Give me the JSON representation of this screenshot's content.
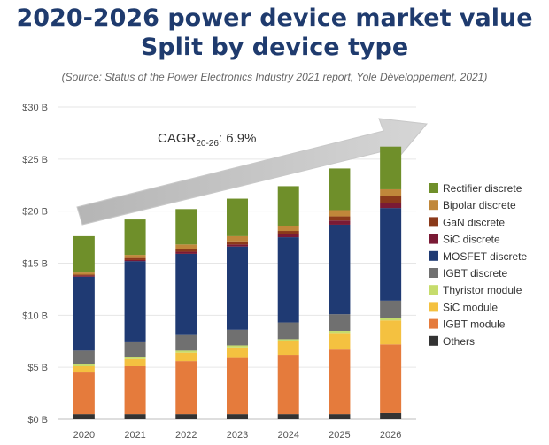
{
  "header": {
    "title_line1": "2020-2026 power device market value",
    "title_line2": "Split by device type",
    "source": "(Source: Status of the Power Electronics Industry 2021 report, Yole Développement, 2021)"
  },
  "annotation": {
    "cagr_prefix": "CAGR",
    "cagr_sub": "20-26",
    "cagr_value": ": 6.9%"
  },
  "chart_data": {
    "type": "bar",
    "stacked": true,
    "title": "2020-2026 power device market value Split by device type",
    "categories": [
      "2020",
      "2021",
      "2022",
      "2023",
      "2024",
      "2025",
      "2026"
    ],
    "ylim": [
      0,
      30
    ],
    "yticks": [
      0,
      5,
      10,
      15,
      20,
      25,
      30
    ],
    "ytick_labels": [
      "$0 B",
      "$5 B",
      "$10 B",
      "$15 B",
      "$20 B",
      "$25 B",
      "$30 B"
    ],
    "grid": true,
    "legend_position": "right",
    "series": [
      {
        "name": "Others",
        "color": "#333333",
        "values": [
          0.5,
          0.5,
          0.5,
          0.5,
          0.5,
          0.5,
          0.6
        ]
      },
      {
        "name": "IGBT module",
        "color": "#e57b3c",
        "values": [
          4.0,
          4.6,
          5.1,
          5.4,
          5.7,
          6.2,
          6.6
        ]
      },
      {
        "name": "SiC module",
        "color": "#f4c140",
        "values": [
          0.6,
          0.7,
          0.8,
          1.0,
          1.3,
          1.6,
          2.3
        ]
      },
      {
        "name": "Thyristor module",
        "color": "#c6dc6c",
        "values": [
          0.2,
          0.2,
          0.2,
          0.2,
          0.2,
          0.2,
          0.2
        ]
      },
      {
        "name": "IGBT discrete",
        "color": "#707070",
        "values": [
          1.3,
          1.4,
          1.5,
          1.5,
          1.6,
          1.6,
          1.7
        ]
      },
      {
        "name": "MOSFET discrete",
        "color": "#1f3a73",
        "values": [
          7.1,
          7.8,
          7.8,
          8.0,
          8.2,
          8.6,
          8.9
        ]
      },
      {
        "name": "SiC discrete",
        "color": "#7a1a35",
        "values": [
          0.1,
          0.1,
          0.2,
          0.2,
          0.3,
          0.4,
          0.5
        ]
      },
      {
        "name": "GaN discrete",
        "color": "#8b3a1a",
        "values": [
          0.1,
          0.2,
          0.3,
          0.3,
          0.3,
          0.4,
          0.7
        ]
      },
      {
        "name": "Bipolar discrete",
        "color": "#c0873a",
        "values": [
          0.2,
          0.3,
          0.4,
          0.5,
          0.5,
          0.6,
          0.6
        ]
      },
      {
        "name": "Rectifier discrete",
        "color": "#6f8f2a",
        "values": [
          3.5,
          3.4,
          3.4,
          3.6,
          3.8,
          4.0,
          4.1
        ]
      }
    ],
    "legend_order": [
      "Rectifier discrete",
      "Bipolar discrete",
      "GaN discrete",
      "SiC discrete",
      "MOSFET discrete",
      "IGBT discrete",
      "Thyristor module",
      "SiC module",
      "IGBT module",
      "Others"
    ]
  }
}
